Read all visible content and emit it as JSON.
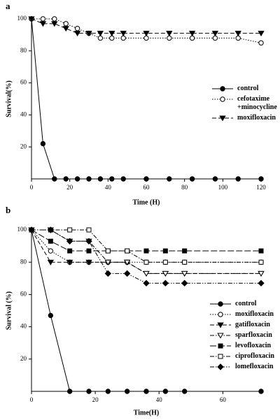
{
  "chart_data": [
    {
      "type": "line",
      "title": "a",
      "x_label": "Time (H)",
      "y_label": "Survival(%)",
      "x": [
        0,
        6,
        12,
        18,
        24,
        30,
        36,
        42,
        48,
        60,
        72,
        84,
        96,
        108,
        120
      ],
      "series": [
        {
          "name": "control",
          "color": "#000000",
          "marker": "circle",
          "filled": true,
          "dash": "solid",
          "values": [
            100,
            22,
            0,
            0,
            0,
            0,
            0,
            0,
            0,
            0,
            0,
            0,
            0,
            0,
            0
          ]
        },
        {
          "name": "cefotaxime +minocycline",
          "color": "#000000",
          "marker": "circle",
          "filled": false,
          "dash": "dotted",
          "values": [
            100,
            100,
            100,
            97,
            94,
            91,
            88,
            88,
            88,
            88,
            88,
            88,
            88,
            88,
            85
          ]
        },
        {
          "name": "moxifloxacin",
          "color": "#000000",
          "marker": "triangle",
          "filled": true,
          "dash": "dashed",
          "values": [
            100,
            97,
            97,
            94,
            91,
            91,
            91,
            91,
            91,
            91,
            91,
            91,
            91,
            91,
            91
          ]
        }
      ],
      "xlim": [
        0,
        120
      ],
      "xticks": [
        0,
        20,
        40,
        60,
        80,
        100,
        120
      ],
      "ylim": [
        0,
        100
      ],
      "yticks": [
        20,
        40,
        60,
        80,
        100
      ],
      "grid": false,
      "legend": "right"
    },
    {
      "type": "line",
      "title": "b",
      "x_label": "Time(H)",
      "y_label": "Survival (%)",
      "x": [
        0,
        6,
        12,
        18,
        24,
        30,
        36,
        42,
        48,
        72
      ],
      "series": [
        {
          "name": "control",
          "color": "#000000",
          "marker": "circle",
          "filled": true,
          "dash": "solid",
          "values": [
            100,
            47,
            0,
            0,
            0,
            0,
            0,
            0,
            0,
            0
          ]
        },
        {
          "name": "moxifloxacin",
          "color": "#000000",
          "marker": "circle",
          "filled": false,
          "dash": "dotted",
          "values": [
            100,
            87,
            80,
            80,
            80,
            80,
            80,
            80,
            80,
            80
          ]
        },
        {
          "name": "gatifloxacin",
          "color": "#000000",
          "marker": "triangle",
          "filled": true,
          "dash": "dashed",
          "values": [
            100,
            80,
            80,
            80,
            80,
            80,
            73,
            73,
            73,
            73
          ]
        },
        {
          "name": "sparfloxacin",
          "color": "#000000",
          "marker": "triangle",
          "filled": false,
          "dash": "dashdot",
          "values": [
            100,
            100,
            93,
            93,
            80,
            80,
            73,
            73,
            73,
            73
          ]
        },
        {
          "name": "levofloxacin",
          "color": "#000000",
          "marker": "square",
          "filled": true,
          "dash": "longdash",
          "values": [
            100,
            93,
            87,
            87,
            87,
            87,
            87,
            87,
            87,
            87
          ]
        },
        {
          "name": "ciprofloxacin",
          "color": "#000000",
          "marker": "square",
          "filled": false,
          "dash": "dashdot",
          "values": [
            100,
            100,
            100,
            100,
            87,
            87,
            80,
            80,
            80,
            80
          ]
        },
        {
          "name": "lomefloxacin",
          "color": "#000000",
          "marker": "diamond",
          "filled": true,
          "dash": "dashdotdot",
          "values": [
            100,
            100,
            93,
            93,
            73,
            73,
            67,
            67,
            67,
            67
          ]
        }
      ],
      "xlim": [
        0,
        72
      ],
      "xticks": [
        0,
        20,
        40,
        60
      ],
      "ylim": [
        0,
        100
      ],
      "yticks": [
        20,
        40,
        60,
        80,
        100
      ],
      "grid": false,
      "legend": "right"
    }
  ]
}
